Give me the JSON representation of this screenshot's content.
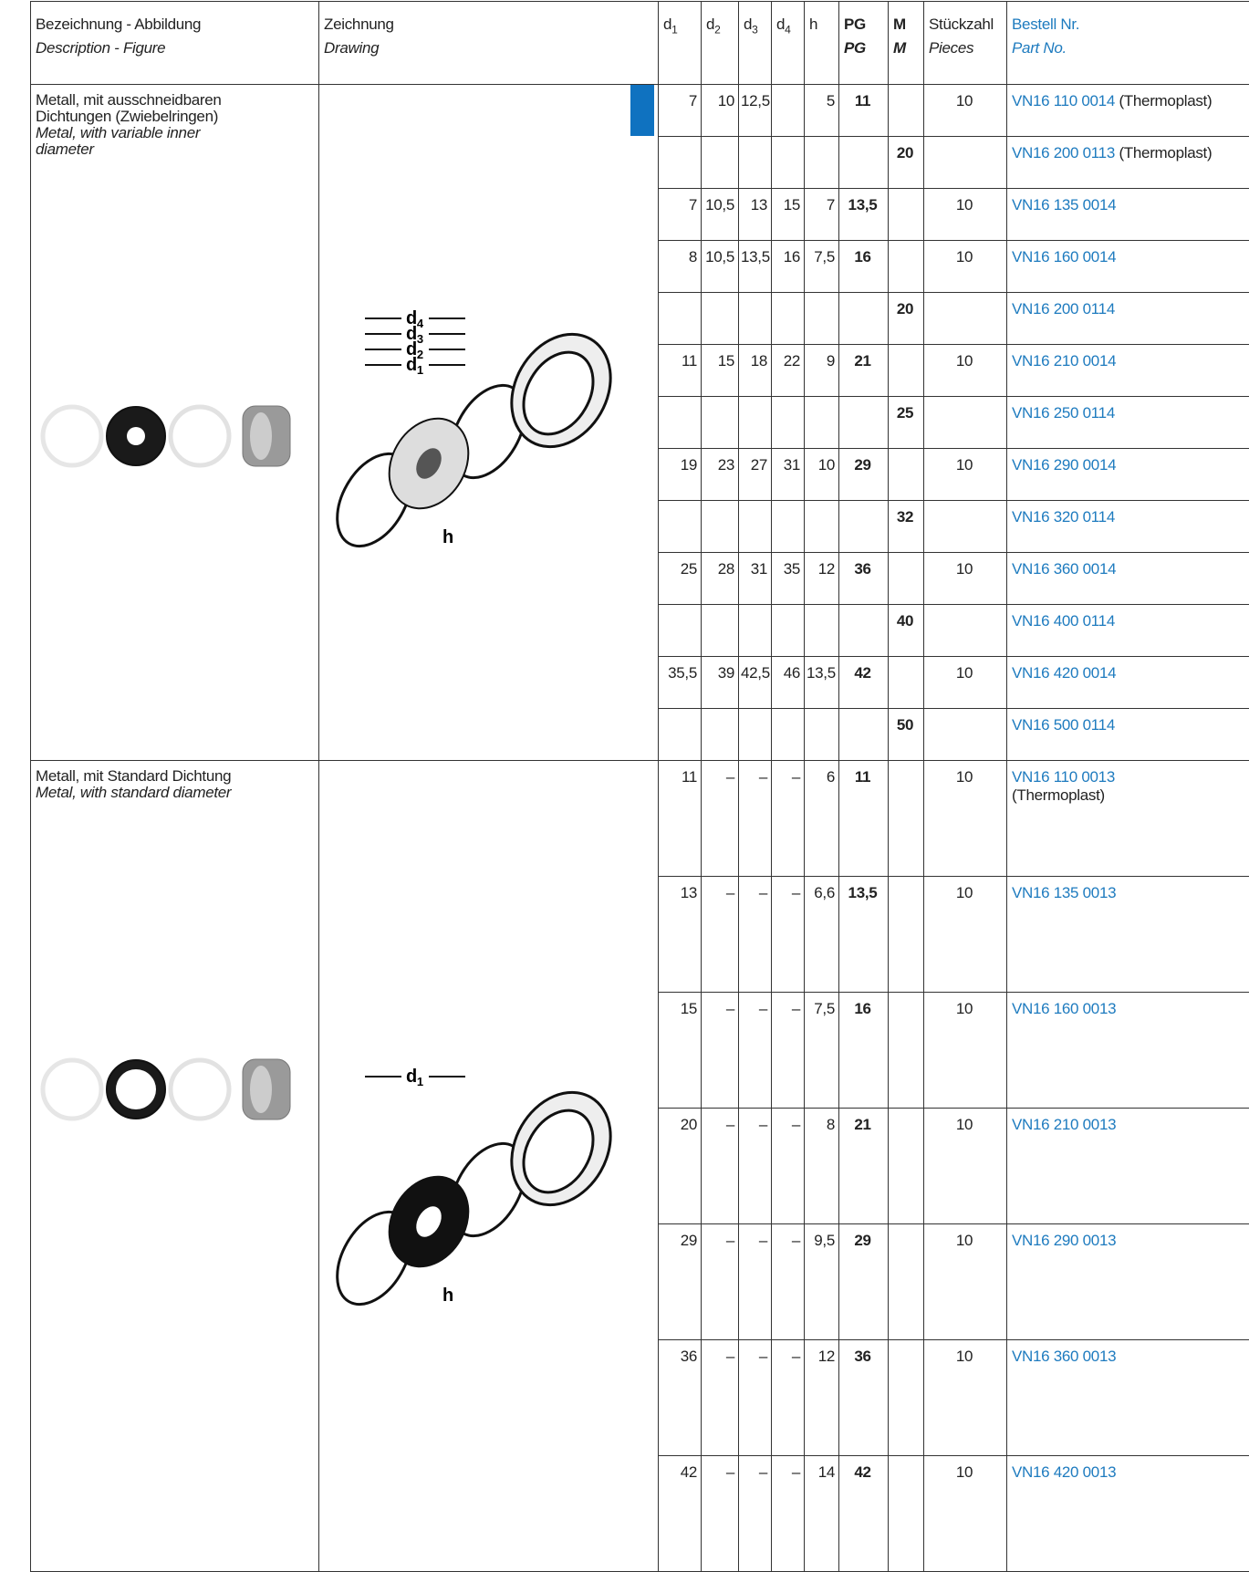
{
  "header": {
    "columns": [
      {
        "main": "Bezeichnung - Abbildung",
        "en": "Description - Figure"
      },
      {
        "main": "Zeichnung",
        "en": "Drawing"
      },
      {
        "main": "d",
        "sub": "1"
      },
      {
        "main": "d",
        "sub": "2"
      },
      {
        "main": "d",
        "sub": "3"
      },
      {
        "main": "d",
        "sub": "4"
      },
      {
        "main": "h"
      },
      {
        "main": "PG",
        "en": "PG"
      },
      {
        "main": "M",
        "en": "M"
      },
      {
        "main": "Stückzahl",
        "en": "Pieces"
      },
      {
        "main": "Bestell Nr.",
        "en": "Part No."
      }
    ]
  },
  "groups": [
    {
      "description": "Metall, mit ausschneidbaren Dichtungen (Zwiebelringen)",
      "description_en": "Metal, with variable inner diameter",
      "drawing_labels": [
        {
          "letter": "d",
          "sub": "4"
        },
        {
          "letter": "d",
          "sub": "3"
        },
        {
          "letter": "d",
          "sub": "2"
        },
        {
          "letter": "d",
          "sub": "1"
        },
        {
          "letter": "h"
        }
      ],
      "rows": [
        {
          "cells": [
            "7",
            "10",
            "12,5",
            null,
            "5",
            "11",
            null,
            "10"
          ],
          "part_no": "VN16 110 0014",
          "note": "(Thermoplast)"
        },
        {
          "cells": [
            null,
            null,
            null,
            null,
            null,
            null,
            "20",
            null
          ],
          "part_no": "VN16 200 0113",
          "note": "(Thermoplast)"
        },
        {
          "cells": [
            "7",
            "10,5",
            "13",
            "15",
            "7",
            "13,5",
            null,
            "10"
          ],
          "part_no": "VN16 135 0014"
        },
        {
          "cells": [
            "8",
            "10,5",
            "13,5",
            "16",
            "7,5",
            "16",
            null,
            "10"
          ],
          "part_no": "VN16 160 0014"
        },
        {
          "cells": [
            null,
            null,
            null,
            null,
            null,
            null,
            "20",
            null
          ],
          "part_no": "VN16 200 0114"
        },
        {
          "cells": [
            "11",
            "15",
            "18",
            "22",
            "9",
            "21",
            null,
            "10"
          ],
          "part_no": "VN16 210 0014"
        },
        {
          "cells": [
            null,
            null,
            null,
            null,
            null,
            null,
            "25",
            null
          ],
          "part_no": "VN16 250 0114"
        },
        {
          "cells": [
            "19",
            "23",
            "27",
            "31",
            "10",
            "29",
            null,
            "10"
          ],
          "part_no": "VN16 290 0014"
        },
        {
          "cells": [
            null,
            null,
            null,
            null,
            null,
            null,
            "32",
            null
          ],
          "part_no": "VN16 320 0114"
        },
        {
          "cells": [
            "25",
            "28",
            "31",
            "35",
            "12",
            "36",
            null,
            "10"
          ],
          "part_no": "VN16 360 0014"
        },
        {
          "cells": [
            null,
            null,
            null,
            null,
            null,
            null,
            "40",
            null
          ],
          "part_no": "VN16 400 0114"
        },
        {
          "cells": [
            "35,5",
            "39",
            "42,5",
            "46",
            "13,5",
            "42",
            null,
            "10"
          ],
          "part_no": "VN16 420 0014"
        },
        {
          "cells": [
            null,
            null,
            null,
            null,
            null,
            null,
            "50",
            null
          ],
          "part_no": "VN16 500 0114"
        }
      ]
    },
    {
      "description": "Metall, mit Standard Dichtung",
      "description_en": "Metal, with standard diameter",
      "drawing_labels": [
        {
          "letter": "d",
          "sub": "1"
        },
        {
          "letter": "h"
        }
      ],
      "rows": [
        {
          "cells": [
            "11",
            "–",
            "–",
            "–",
            "6",
            "11",
            null,
            "10"
          ],
          "part_no": "VN16 110 0013",
          "note": "(Thermoplast)",
          "note_break": true
        },
        {
          "cells": [
            "13",
            "–",
            "–",
            "–",
            "6,6",
            "13,5",
            null,
            "10"
          ],
          "part_no": "VN16 135 0013"
        },
        {
          "cells": [
            "15",
            "–",
            "–",
            "–",
            "7,5",
            "16",
            null,
            "10"
          ],
          "part_no": "VN16 160 0013"
        },
        {
          "cells": [
            "20",
            "–",
            "–",
            "–",
            "8",
            "21",
            null,
            "10"
          ],
          "part_no": "VN16 210 0013"
        },
        {
          "cells": [
            "29",
            "–",
            "–",
            "–",
            "9,5",
            "29",
            null,
            "10"
          ],
          "part_no": "VN16 290 0013"
        },
        {
          "cells": [
            "36",
            "–",
            "–",
            "–",
            "12",
            "36",
            null,
            "10"
          ],
          "part_no": "VN16 360 0013"
        },
        {
          "cells": [
            "42",
            "–",
            "–",
            "–",
            "14",
            "42",
            null,
            "10"
          ],
          "part_no": "VN16 420 0013"
        }
      ]
    }
  ]
}
